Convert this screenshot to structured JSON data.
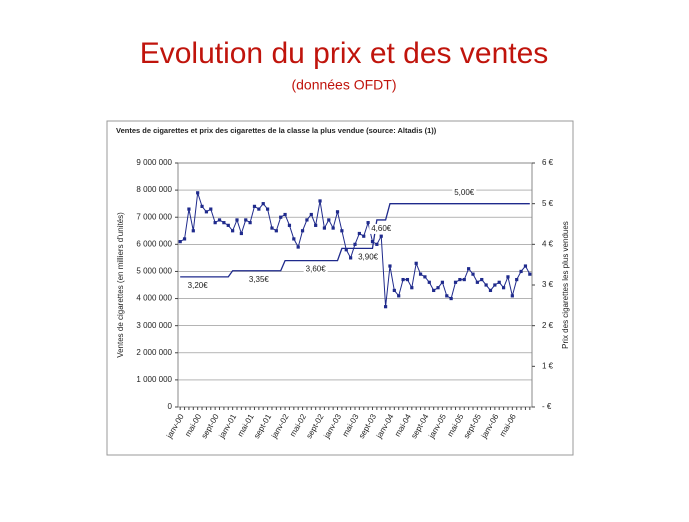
{
  "title": "Evolution du prix et des ventes",
  "subtitle": "(données OFDT)",
  "chart_data": {
    "type": "line",
    "title": "Ventes de cigarettes et prix des cigarettes de la classe la plus vendue (source: Altadis (1))",
    "y_label": "Ventes de cigarettes (en milliers d'unités)",
    "y2_label": "Prix des cigarettes les plus vendues",
    "categories": [
      "janv-00",
      null,
      null,
      null,
      "mai-00",
      null,
      null,
      null,
      "sept-00",
      null,
      null,
      null,
      "janv-01",
      null,
      null,
      null,
      "mai-01",
      null,
      null,
      null,
      "sept-01",
      null,
      null,
      null,
      "janv-02",
      null,
      null,
      null,
      "mai-02",
      null,
      null,
      null,
      "sept-02",
      null,
      null,
      null,
      "janv-03",
      null,
      null,
      null,
      "mai-03",
      null,
      null,
      null,
      "sept-03",
      null,
      null,
      null,
      "janv-04",
      null,
      null,
      null,
      "mai-04",
      null,
      null,
      null,
      "sept-04",
      null,
      null,
      null,
      "janv-05",
      null,
      null,
      null,
      "mai-05",
      null,
      null,
      null,
      "sept-05",
      null,
      null,
      null,
      "janv-06",
      null,
      null,
      null,
      "mai-06",
      null,
      null,
      null,
      null
    ],
    "series": [
      {
        "name": "Ventes",
        "color": "#1f2a8c",
        "values": [
          6100000,
          6200000,
          7300000,
          6500000,
          7900000,
          7400000,
          7200000,
          7300000,
          6800000,
          6900000,
          6800000,
          6700000,
          6500000,
          6900000,
          6400000,
          6900000,
          6800000,
          7400000,
          7300000,
          7500000,
          7300000,
          6600000,
          6500000,
          7000000,
          7100000,
          6700000,
          6200000,
          5900000,
          6500000,
          6900000,
          7100000,
          6700000,
          7600000,
          6600000,
          6900000,
          6600000,
          7200000,
          6500000,
          5800000,
          5500000,
          6000000,
          6400000,
          6300000,
          6800000,
          6100000,
          6000000,
          6300000,
          3700000,
          5200000,
          4300000,
          4100000,
          4700000,
          4700000,
          4400000,
          5300000,
          4900000,
          4800000,
          4600000,
          4300000,
          4400000,
          4600000,
          4100000,
          4000000,
          4600000,
          4700000,
          4700000,
          5100000,
          4900000,
          4600000,
          4700000,
          4500000,
          4300000,
          4500000,
          4600000,
          4400000,
          4800000,
          4100000,
          4700000,
          5000000,
          5200000,
          4900000
        ]
      },
      {
        "name": "Prix",
        "color": "#1f2a8c",
        "axis": "y2",
        "values": [
          3.2,
          3.2,
          3.2,
          3.2,
          3.2,
          3.2,
          3.2,
          3.2,
          3.2,
          3.2,
          3.2,
          3.2,
          3.35,
          3.35,
          3.35,
          3.35,
          3.35,
          3.35,
          3.35,
          3.35,
          3.35,
          3.35,
          3.35,
          3.35,
          3.6,
          3.6,
          3.6,
          3.6,
          3.6,
          3.6,
          3.6,
          3.6,
          3.6,
          3.6,
          3.6,
          3.6,
          3.6,
          3.9,
          3.9,
          3.9,
          3.9,
          3.9,
          3.9,
          3.9,
          3.9,
          4.6,
          4.6,
          4.6,
          5,
          5,
          5,
          5,
          5,
          5,
          5,
          5,
          5,
          5,
          5,
          5,
          5,
          5,
          5,
          5,
          5,
          5,
          5,
          5,
          5,
          5,
          5,
          5,
          5,
          5,
          5,
          5,
          5,
          5,
          5,
          5,
          5
        ],
        "value_labels": [
          null,
          null,
          null,
          null,
          "3,20€",
          null,
          null,
          null,
          null,
          null,
          null,
          null,
          null,
          null,
          null,
          null,
          null,
          null,
          "3,35€",
          null,
          null,
          null,
          null,
          null,
          null,
          null,
          null,
          null,
          null,
          null,
          null,
          "3,60€",
          null,
          null,
          null,
          null,
          null,
          null,
          null,
          null,
          null,
          null,
          null,
          "3,90€",
          null,
          null,
          "4,60€",
          null,
          null,
          null,
          null,
          null,
          null,
          null,
          null,
          null,
          null,
          null,
          null,
          null,
          null,
          null,
          null,
          null,
          null,
          "5,00€",
          null,
          null,
          null,
          null,
          null,
          null,
          null,
          null,
          null,
          null,
          null,
          null,
          null,
          null,
          null
        ]
      }
    ],
    "ylim": [
      0,
      9000000
    ],
    "yticks": [
      0,
      {
        "value": 1000000,
        "label": "1 000 000"
      },
      {
        "value": 2000000,
        "label": "2 000 000"
      },
      {
        "value": 3000000,
        "label": "3 000 000"
      },
      {
        "value": 4000000,
        "label": "4 000 000"
      },
      {
        "value": 5000000,
        "label": "5 000 000"
      },
      {
        "value": 6000000,
        "label": "6 000 000"
      },
      {
        "value": 7000000,
        "label": "7 000 000"
      },
      {
        "value": 8000000,
        "label": "8 000 000"
      },
      {
        "value": 9000000,
        "label": "9 000 000"
      }
    ],
    "y2lim": [
      0,
      6
    ],
    "y2ticks": [
      {
        "value": 0,
        "label": "- €"
      },
      {
        "value": 1,
        "label": "1 €"
      },
      {
        "value": 2,
        "label": "2 €"
      },
      {
        "value": 3,
        "label": "3 €"
      },
      {
        "value": 4,
        "label": "4 €"
      },
      {
        "value": 5,
        "label": "5 €"
      },
      {
        "value": 6,
        "label": "6 €"
      }
    ],
    "grid": true
  }
}
